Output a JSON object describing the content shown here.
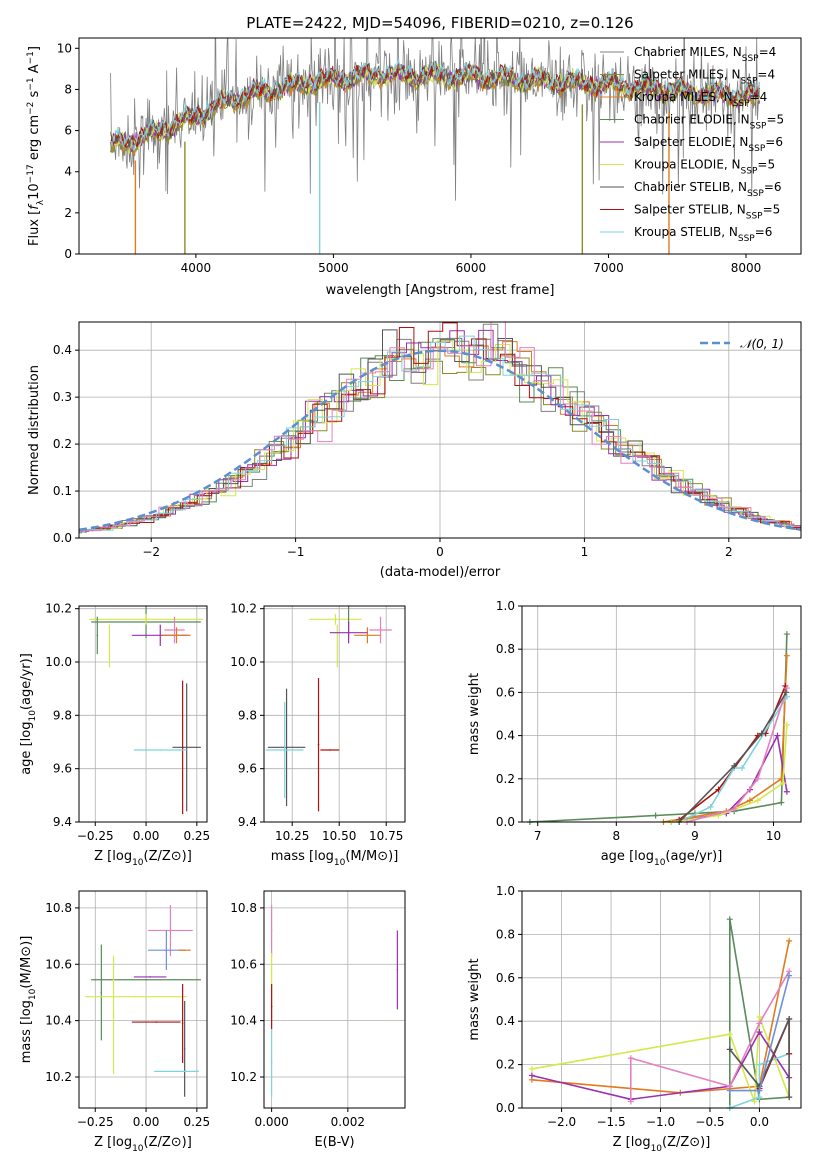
{
  "figure": {
    "title": "PLATE=2422, MJD=54096, FIBERID=0210, z=0.126"
  },
  "colors": {
    "Chabrier MILES": "#808080",
    "Salpeter MILES": "#8c8c2a",
    "Kroupa MILES": "#e07b1e",
    "Chabrier ELODIE": "#5a8a5a",
    "Salpeter ELODIE": "#9b30b0",
    "Kroupa ELODIE": "#d4e84a",
    "Chabrier STELIB": "#555555",
    "Salpeter STELIB": "#b01010",
    "Kroupa STELIB": "#7fd3dc",
    "extra_pink": "#e580c0",
    "extra_blue": "#6f8fd8",
    "normal_curve": "#5b8fd4"
  },
  "chart_data": [
    {
      "id": "spectrum",
      "type": "line",
      "title": "PLATE=2422, MJD=54096, FIBERID=0210, z=0.126",
      "xlabel": "wavelength [Angstrom, rest frame]",
      "ylabel": "Flux [fλ10⁻¹⁷ erg cm⁻² s⁻¹ A⁻¹]",
      "xlim": [
        3150,
        8400
      ],
      "ylim": [
        0,
        10.5
      ],
      "xticks": [
        4000,
        5000,
        6000,
        7000,
        8000
      ],
      "yticks": [
        0,
        2,
        4,
        6,
        8,
        10
      ],
      "grid": false,
      "legend_position": "top-right",
      "legend": [
        {
          "name": "Chabrier MILES",
          "label": "Chabrier MILES, N",
          "sub": "SSP",
          "suffix": "=4"
        },
        {
          "name": "Salpeter MILES",
          "label": "Salpeter MILES, N",
          "sub": "SSP",
          "suffix": "=4"
        },
        {
          "name": "Kroupa MILES",
          "label": "Kroupa MILES, N",
          "sub": "SSP",
          "suffix": "=4"
        },
        {
          "name": "Chabrier ELODIE",
          "label": "Chabrier ELODIE, N",
          "sub": "SSP",
          "suffix": "=5"
        },
        {
          "name": "Salpeter ELODIE",
          "label": "Salpeter ELODIE, N",
          "sub": "SSP",
          "suffix": "=6"
        },
        {
          "name": "Kroupa ELODIE",
          "label": "Kroupa ELODIE, N",
          "sub": "SSP",
          "suffix": "=5"
        },
        {
          "name": "Chabrier STELIB",
          "label": "Chabrier STELIB, N",
          "sub": "SSP",
          "suffix": "=6"
        },
        {
          "name": "Salpeter STELIB",
          "label": "Salpeter STELIB, N",
          "sub": "SSP",
          "suffix": "=5"
        },
        {
          "name": "Kroupa STELIB",
          "label": "Kroupa STELIB, N",
          "sub": "SSP",
          "suffix": "=6"
        }
      ],
      "continuum": [
        [
          3380,
          5.3
        ],
        [
          3600,
          5.6
        ],
        [
          3900,
          6.4
        ],
        [
          4300,
          7.6
        ],
        [
          4800,
          8.3
        ],
        [
          5300,
          8.7
        ],
        [
          6000,
          8.6
        ],
        [
          6500,
          8.4
        ],
        [
          7000,
          8.2
        ],
        [
          7500,
          7.9
        ],
        [
          8100,
          7.6
        ]
      ],
      "dips": [
        3560,
        3920,
        4900,
        6810,
        7440
      ]
    },
    {
      "id": "residuals",
      "type": "histogram",
      "xlabel": "(data-model)/error",
      "ylabel": "Normed distribution",
      "xlim": [
        -2.5,
        2.5
      ],
      "ylim": [
        0,
        0.46
      ],
      "xticks": [
        -2,
        -1,
        0,
        1,
        2
      ],
      "yticks": [
        0.0,
        0.1,
        0.2,
        0.3,
        0.4
      ],
      "grid": true,
      "legend_position": "top-right",
      "legend": [
        {
          "name": "normal",
          "label": "𝒩(0, 1)"
        }
      ],
      "bin_width": 0.1
    },
    {
      "id": "age_vs_z",
      "type": "scatter",
      "xlabel": "Z [log₁₀(Z/Z⊙)]",
      "ylabel": "age  [log₁₀(age/yr)]",
      "xlim": [
        -0.33,
        0.3
      ],
      "ylim": [
        9.4,
        10.21
      ],
      "xticks": [
        -0.25,
        0.0,
        0.25
      ],
      "yticks": [
        9.4,
        9.6,
        9.8,
        10.0,
        10.2
      ],
      "grid": true,
      "points": [
        {
          "model": "Chabrier ELODIE",
          "x": 0.0,
          "y": 10.15,
          "xerr": 0.27,
          "yerr": 0.06
        },
        {
          "model": "Kroupa ELODIE",
          "x": 0.0,
          "y": 10.16,
          "xerr": 0.28,
          "yerr": 0.02
        },
        {
          "model": "Kroupa ELODIE",
          "x": -0.18,
          "y": 10.06,
          "xerr": 0.0,
          "yerr": 0.08
        },
        {
          "model": "Salpeter ELODIE",
          "x": 0.07,
          "y": 10.1,
          "xerr": 0.14,
          "yerr": 0.04
        },
        {
          "model": "extra_pink",
          "x": 0.14,
          "y": 10.12,
          "xerr": 0.05,
          "yerr": 0.05
        },
        {
          "model": "Kroupa MILES",
          "x": 0.15,
          "y": 10.1,
          "xerr": 0.07,
          "yerr": 0.03
        },
        {
          "model": "Chabrier ELODIE",
          "x": -0.24,
          "y": 10.1,
          "xerr": 0.0,
          "yerr": 0.07
        },
        {
          "model": "Chabrier STELIB",
          "x": 0.2,
          "y": 9.68,
          "xerr": 0.07,
          "yerr": 0.24
        },
        {
          "model": "Salpeter STELIB",
          "x": 0.18,
          "y": 9.68,
          "xerr": 0.0,
          "yerr": 0.25
        },
        {
          "model": "Kroupa STELIB",
          "x": 0.07,
          "y": 9.67,
          "xerr": 0.13,
          "yerr": 0.0
        }
      ]
    },
    {
      "id": "age_vs_mass",
      "type": "scatter",
      "xlabel": "mass [log₁₀(M/M⊙)]",
      "ylabel": "",
      "xlim": [
        10.1,
        10.85
      ],
      "ylim": [
        9.4,
        10.21
      ],
      "xticks": [
        10.25,
        10.5,
        10.75
      ],
      "yticks": [
        9.4,
        9.6,
        9.8,
        10.0,
        10.2
      ],
      "grid": true,
      "points": [
        {
          "model": "Kroupa ELODIE",
          "x": 10.48,
          "y": 10.16,
          "xerr": 0.14,
          "yerr": 0.02
        },
        {
          "model": "Chabrier ELODIE",
          "x": 10.55,
          "y": 10.15,
          "xerr": 0.0,
          "yerr": 0.06
        },
        {
          "model": "Kroupa ELODIE",
          "x": 10.49,
          "y": 10.06,
          "xerr": 0.0,
          "yerr": 0.08
        },
        {
          "model": "Kroupa MILES",
          "x": 10.65,
          "y": 10.1,
          "xerr": 0.07,
          "yerr": 0.03
        },
        {
          "model": "Salpeter ELODIE",
          "x": 10.55,
          "y": 10.11,
          "xerr": 0.1,
          "yerr": 0.04
        },
        {
          "model": "extra_pink",
          "x": 10.72,
          "y": 10.12,
          "xerr": 0.06,
          "yerr": 0.05
        },
        {
          "model": "Chabrier STELIB",
          "x": 10.22,
          "y": 9.68,
          "xerr": 0.1,
          "yerr": 0.22
        },
        {
          "model": "Kroupa STELIB",
          "x": 10.21,
          "y": 9.67,
          "xerr": 0.1,
          "yerr": 0.18
        },
        {
          "model": "Salpeter STELIB",
          "x": 10.39,
          "y": 9.69,
          "xerr": 0.0,
          "yerr": 0.25
        },
        {
          "model": "Salpeter STELIB",
          "x": 10.45,
          "y": 9.67,
          "xerr": 0.05,
          "yerr": 0.0
        }
      ]
    },
    {
      "id": "mass_weight_vs_age",
      "type": "line",
      "xlabel": "age  [log₁₀(age/yr)]",
      "ylabel": "mass weight",
      "xlim": [
        6.8,
        10.35
      ],
      "ylim": [
        0,
        1.0
      ],
      "xticks": [
        7,
        8,
        9,
        10
      ],
      "yticks": [
        0.0,
        0.2,
        0.4,
        0.6,
        0.8,
        1.0
      ],
      "grid": true,
      "series": [
        {
          "model": "Chabrier ELODIE",
          "x": [
            6.9,
            8.5,
            9.0,
            9.5,
            10.1,
            10.17
          ],
          "y": [
            0.0,
            0.03,
            0.04,
            0.05,
            0.09,
            0.87
          ]
        },
        {
          "model": "Kroupa MILES",
          "x": [
            8.6,
            9.4,
            9.7,
            10.1,
            10.17
          ],
          "y": [
            0.0,
            0.05,
            0.1,
            0.2,
            0.77
          ]
        },
        {
          "model": "Salpeter STELIB",
          "x": [
            8.8,
            9.3,
            9.8,
            9.9,
            10.15
          ],
          "y": [
            0.01,
            0.15,
            0.4,
            0.41,
            0.63
          ]
        },
        {
          "model": "Kroupa STELIB",
          "x": [
            8.8,
            9.2,
            9.5,
            9.6,
            10.17
          ],
          "y": [
            0.0,
            0.07,
            0.25,
            0.25,
            0.58
          ]
        },
        {
          "model": "Salpeter ELODIE",
          "x": [
            8.7,
            9.4,
            9.7,
            10.05,
            10.17
          ],
          "y": [
            0.0,
            0.04,
            0.15,
            0.4,
            0.14
          ]
        },
        {
          "model": "Kroupa ELODIE",
          "x": [
            8.7,
            9.3,
            9.8,
            10.12,
            10.17
          ],
          "y": [
            0.0,
            0.03,
            0.1,
            0.18,
            0.45
          ]
        },
        {
          "model": "extra_pink",
          "x": [
            8.9,
            9.5,
            9.8,
            10.17
          ],
          "y": [
            0.0,
            0.06,
            0.2,
            0.62
          ]
        },
        {
          "model": "Chabrier STELIB",
          "x": [
            8.8,
            9.5,
            9.85,
            10.16
          ],
          "y": [
            0.0,
            0.26,
            0.41,
            0.6
          ]
        }
      ]
    },
    {
      "id": "mass_vs_z",
      "type": "scatter",
      "xlabel": "Z [log₁₀(Z/Z⊙)]",
      "ylabel": "mass [log₁₀(M/M⊙)]",
      "xlim": [
        -0.33,
        0.3
      ],
      "ylim": [
        10.09,
        10.86
      ],
      "xticks": [
        -0.25,
        0.0,
        0.25
      ],
      "yticks": [
        10.2,
        10.4,
        10.6,
        10.8
      ],
      "grid": true,
      "points": [
        {
          "model": "Chabrier ELODIE",
          "x": 0.0,
          "y": 10.545,
          "xerr": 0.27,
          "yerr": 0.0
        },
        {
          "model": "Chabrier ELODIE",
          "x": -0.22,
          "y": 10.5,
          "xerr": 0.0,
          "yerr": 0.17
        },
        {
          "model": "Kroupa ELODIE",
          "x": -0.05,
          "y": 10.485,
          "xerr": 0.25,
          "yerr": 0.0
        },
        {
          "model": "Kroupa ELODIE",
          "x": -0.16,
          "y": 10.42,
          "xerr": 0.0,
          "yerr": 0.21
        },
        {
          "model": "Salpeter ELODIE",
          "x": 0.02,
          "y": 10.555,
          "xerr": 0.08,
          "yerr": 0.0
        },
        {
          "model": "extra_pink",
          "x": 0.12,
          "y": 10.72,
          "xerr": 0.11,
          "yerr": 0.09
        },
        {
          "model": "extra_blue",
          "x": 0.1,
          "y": 10.65,
          "xerr": 0.09,
          "yerr": 0.07
        },
        {
          "model": "Kroupa MILES",
          "x": 0.19,
          "y": 10.65,
          "xerr": 0.03,
          "yerr": 0.0
        },
        {
          "model": "Chabrier STELIB",
          "x": 0.19,
          "y": 10.3,
          "xerr": 0.0,
          "yerr": 0.17
        },
        {
          "model": "Salpeter STELIB",
          "x": 0.18,
          "y": 10.39,
          "xerr": 0.0,
          "yerr": 0.14
        },
        {
          "model": "Salpeter STELIB",
          "x": 0.05,
          "y": 10.395,
          "xerr": 0.12,
          "yerr": 0.0
        },
        {
          "model": "Kroupa STELIB",
          "x": 0.15,
          "y": 10.22,
          "xerr": 0.11,
          "yerr": 0.0
        }
      ]
    },
    {
      "id": "mass_vs_ebv",
      "type": "scatter",
      "xlabel": "E(B-V)",
      "ylabel": "",
      "xlim": [
        -0.0002,
        0.0035
      ],
      "ylim": [
        10.09,
        10.86
      ],
      "xticks": [
        0.0,
        0.002
      ],
      "yticks": [
        10.2,
        10.4,
        10.6,
        10.8
      ],
      "grid": true,
      "points": [
        {
          "model": "extra_pink",
          "x": 0.0,
          "y": 10.72,
          "xerr": 0.0,
          "yerr": 0.09
        },
        {
          "model": "Kroupa ELODIE",
          "x": 0.0,
          "y": 10.52,
          "xerr": 0.0,
          "yerr": 0.12
        },
        {
          "model": "Salpeter STELIB",
          "x": 0.0,
          "y": 10.45,
          "xerr": 0.0,
          "yerr": 0.08
        },
        {
          "model": "Kroupa STELIB",
          "x": 0.0,
          "y": 10.25,
          "xerr": 0.0,
          "yerr": 0.12
        },
        {
          "model": "Salpeter ELODIE",
          "x": 0.0033,
          "y": 10.58,
          "xerr": 0.0,
          "yerr": 0.14
        }
      ]
    },
    {
      "id": "mass_weight_vs_z",
      "type": "line",
      "xlabel": "Z [log₁₀(Z/Z⊙)]",
      "ylabel": "mass weight",
      "xlim": [
        -2.4,
        0.42
      ],
      "ylim": [
        0,
        1.0
      ],
      "xticks": [
        -2.0,
        -1.5,
        -1.0,
        -0.5,
        0.0
      ],
      "yticks": [
        0.0,
        0.2,
        0.4,
        0.6,
        0.8,
        1.0
      ],
      "grid": true,
      "series": [
        {
          "model": "Chabrier ELODIE",
          "x": [
            -0.3,
            -0.3,
            0.0,
            0.3
          ],
          "y": [
            0.0,
            0.87,
            0.04,
            0.05
          ]
        },
        {
          "model": "Kroupa MILES",
          "x": [
            -2.3,
            -0.8,
            0.0,
            0.3
          ],
          "y": [
            0.13,
            0.07,
            0.1,
            0.77
          ]
        },
        {
          "model": "Kroupa ELODIE",
          "x": [
            -2.3,
            -0.3,
            -0.05,
            0.0,
            0.3
          ],
          "y": [
            0.18,
            0.34,
            0.03,
            0.42,
            0.05
          ]
        },
        {
          "model": "Salpeter ELODIE",
          "x": [
            -2.3,
            -1.3,
            -0.3,
            0.0,
            0.3
          ],
          "y": [
            0.15,
            0.04,
            0.1,
            0.35,
            0.14
          ]
        },
        {
          "model": "extra_pink",
          "x": [
            -1.3,
            -1.3,
            -0.3,
            0.0,
            0.3
          ],
          "y": [
            0.03,
            0.23,
            0.1,
            0.39,
            0.63
          ]
        },
        {
          "model": "Kroupa STELIB",
          "x": [
            -0.3,
            0.0,
            0.0,
            0.3
          ],
          "y": [
            0.0,
            0.05,
            0.2,
            0.25
          ]
        },
        {
          "model": "Salpeter STELIB",
          "x": [
            0.0,
            0.3,
            0.3
          ],
          "y": [
            0.09,
            0.41,
            0.25
          ]
        },
        {
          "model": "Chabrier STELIB",
          "x": [
            -0.3,
            0.0,
            0.3,
            0.3
          ],
          "y": [
            0.27,
            0.1,
            0.41,
            0.05
          ]
        },
        {
          "model": "extra_blue",
          "x": [
            -0.3,
            0.0,
            0.3
          ],
          "y": [
            0.08,
            0.08,
            0.61
          ]
        }
      ]
    }
  ]
}
